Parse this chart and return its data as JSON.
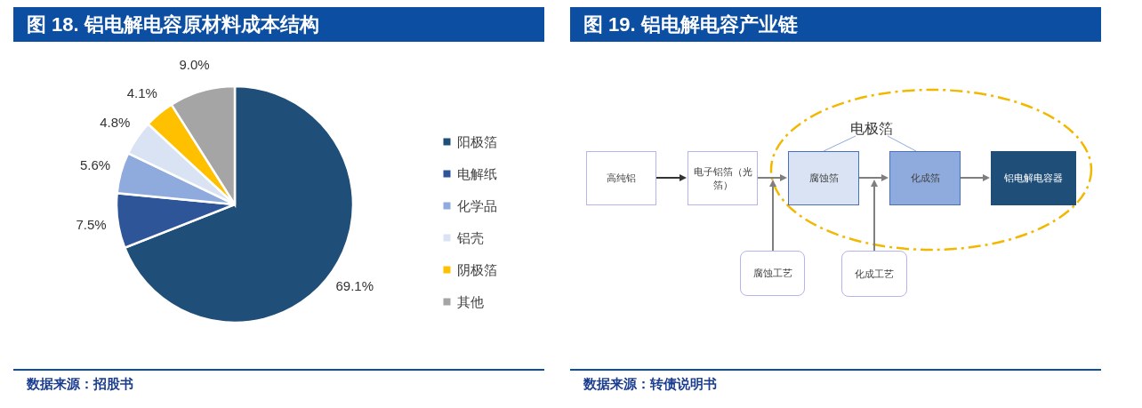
{
  "chart_data": [
    {
      "type": "pie",
      "title": "图 18. 铝电解电容原材料成本结构",
      "categories": [
        "阳极箔",
        "电解纸",
        "化学品",
        "铝壳",
        "阴极箔",
        "其他"
      ],
      "values": [
        69.1,
        7.5,
        5.6,
        4.8,
        4.1,
        9.0
      ],
      "colors": [
        "#1f4e79",
        "#2e5597",
        "#8faadc",
        "#dae3f3",
        "#ffc000",
        "#a5a5a5"
      ],
      "value_labels": [
        "69.1%",
        "7.5%",
        "5.6%",
        "4.8%",
        "4.1%",
        "9.0%"
      ],
      "legend": "right",
      "annotations": [
        "数据来源：招股书"
      ]
    },
    {
      "type": "other",
      "title": "图 19. 铝电解电容产业链",
      "annotations": [
        "高纯铝",
        "电子铝箔（光箔）",
        "腐蚀箔",
        "化成箔",
        "铝电解电容器",
        "电极箔",
        "腐蚀工艺",
        "化成工艺",
        "数据来源：转债说明书"
      ]
    }
  ]
}
